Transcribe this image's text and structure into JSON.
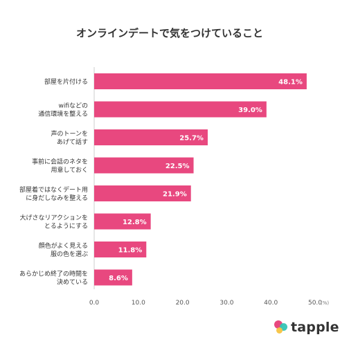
{
  "chart_data": {
    "type": "bar",
    "orientation": "horizontal",
    "title": "オンラインデートで気をつけていること",
    "categories": [
      [
        "部屋を片付ける"
      ],
      [
        "wifiなどの",
        "通信環境を整える"
      ],
      [
        "声のトーンを",
        "あげて話す"
      ],
      [
        "事前に会話のネタを",
        "用意しておく"
      ],
      [
        "部屋着ではなくデート用",
        "に身だしなみを整える"
      ],
      [
        "大げさなリアクションを",
        "とるようにする"
      ],
      [
        "顔色がよく見える",
        "服の色を選ぶ"
      ],
      [
        "あらかじめ終了の時間を",
        "決めている"
      ]
    ],
    "values": [
      48.1,
      39.0,
      25.7,
      22.5,
      21.9,
      12.8,
      11.8,
      8.6
    ],
    "value_labels": [
      "48.1%",
      "39.0%",
      "25.7%",
      "22.5%",
      "21.9%",
      "12.8%",
      "11.8%",
      "8.6%"
    ],
    "x_ticks": [
      "0.0",
      "10.0",
      "20.0",
      "30.0",
      "40.0",
      "50.0"
    ],
    "x_unit": "(%)",
    "xlim": [
      0,
      50
    ],
    "grid": false,
    "colors": {
      "bar": "#e8487f",
      "label": "#ffffff",
      "text": "#333333",
      "axis": "#cccccc"
    }
  },
  "brand": {
    "name": "tapple",
    "colors": {
      "pink": "#e8487f",
      "teal": "#35c4b5",
      "yellow": "#f7c341"
    }
  }
}
